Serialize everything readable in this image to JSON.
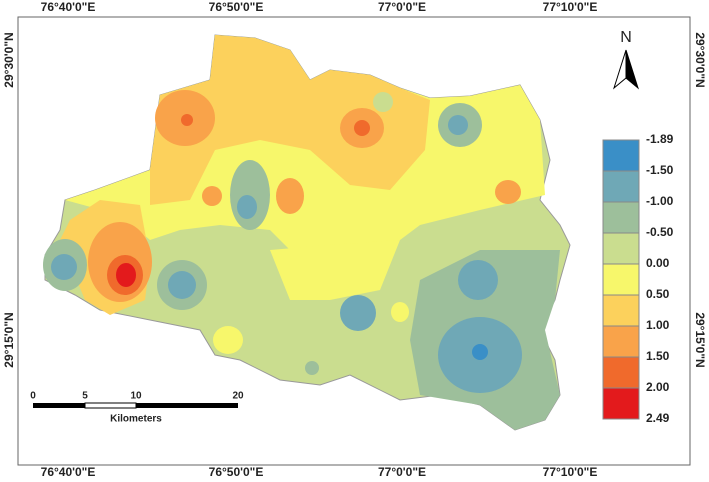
{
  "map": {
    "north": "N",
    "top_labels": [
      "76°40'0\"E",
      "76°50'0\"E",
      "77°0'0\"E",
      "77°10'0\"E"
    ],
    "bottom_labels": [
      "76°40'0\"E",
      "76°50'0\"E",
      "77°0'0\"E",
      "77°10'0\"E"
    ],
    "left_labels": [
      "29°30'0\"N",
      "29°15'0\"N"
    ],
    "right_labels": [
      "29°30'0\"N",
      "29°15'0\"N"
    ],
    "legend": {
      "labels": [
        "-1.89",
        "-1.50",
        "-1.00",
        "-0.50",
        "0.00",
        "0.50",
        "1.00",
        "1.50",
        "2.00",
        "2.49"
      ],
      "colors": [
        "#3a8fc7",
        "#6fa8b6",
        "#9dbf9b",
        "#cadd8f",
        "#f7f76b",
        "#fcd15c",
        "#f9a34a",
        "#f06a2c",
        "#e31a1c"
      ]
    },
    "scale_bar": {
      "ticks": [
        "0",
        "5",
        "10",
        "20"
      ],
      "unit": "Kilometers"
    }
  }
}
